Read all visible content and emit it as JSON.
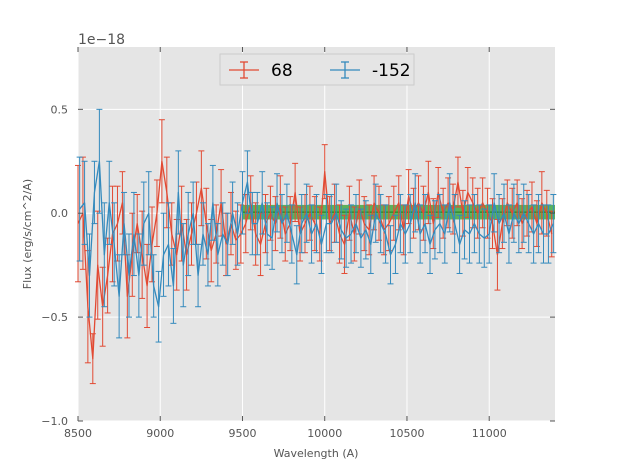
{
  "chart_data": {
    "type": "line",
    "title": "",
    "xlabel": "Wavelength (A)",
    "ylabel": "Flux (erg/s/cm^2/A)",
    "y_offset_label": "1e−18",
    "xlim": [
      8500,
      11400
    ],
    "ylim": [
      -1.0,
      0.8
    ],
    "x_ticks": [
      8500,
      9000,
      9500,
      10000,
      10500,
      11000
    ],
    "x_tick_labels": [
      "8500",
      "9000",
      "9500",
      "10000",
      "10500",
      "11000"
    ],
    "y_ticks": [
      -1.0,
      -0.5,
      0.0,
      0.5
    ],
    "y_tick_labels": [
      "−1.0",
      "−0.5",
      "0.0",
      "0.5"
    ],
    "grid": true,
    "legend": {
      "placement": "top-center",
      "entries": [
        "68",
        "-152"
      ]
    },
    "band": {
      "x_start": 9500,
      "x_end": 11400,
      "y_low": -0.03,
      "y_high": 0.04,
      "color": "#2ca02c"
    },
    "series": [
      {
        "name": "68",
        "color": "#e24a33",
        "x": [
          8500,
          8530,
          8560,
          8590,
          8620,
          8650,
          8680,
          8710,
          8740,
          8770,
          8800,
          8830,
          8860,
          8890,
          8920,
          8950,
          8980,
          9010,
          9040,
          9070,
          9100,
          9130,
          9160,
          9190,
          9220,
          9250,
          9280,
          9310,
          9340,
          9370,
          9400,
          9430,
          9460,
          9490,
          9520,
          9550,
          9580,
          9610,
          9640,
          9670,
          9700,
          9730,
          9760,
          9790,
          9820,
          9850,
          9880,
          9910,
          9940,
          9970,
          10000,
          10030,
          10060,
          10090,
          10120,
          10150,
          10180,
          10210,
          10240,
          10270,
          10300,
          10330,
          10360,
          10390,
          10420,
          10450,
          10480,
          10510,
          10540,
          10570,
          10600,
          10630,
          10660,
          10690,
          10720,
          10750,
          10780,
          10810,
          10840,
          10870,
          10900,
          10930,
          10960,
          10990,
          11020,
          11050,
          11080,
          11110,
          11140,
          11170,
          11200,
          11230,
          11260,
          11290,
          11320,
          11350,
          11380
        ],
        "y": [
          -0.05,
          0.0,
          -0.45,
          -0.7,
          -0.25,
          -0.45,
          -0.3,
          -0.1,
          -0.05,
          0.05,
          -0.4,
          -0.2,
          -0.05,
          -0.2,
          -0.35,
          -0.15,
          0.0,
          0.25,
          0.1,
          -0.1,
          -0.2,
          -0.05,
          -0.2,
          -0.1,
          0.0,
          0.12,
          -0.05,
          -0.18,
          -0.1,
          0.05,
          -0.15,
          -0.05,
          -0.13,
          -0.1,
          -0.05,
          0.05,
          -0.1,
          -0.15,
          -0.05,
          0.0,
          -0.05,
          0.03,
          -0.1,
          -0.05,
          0.1,
          -0.1,
          -0.05,
          0.0,
          -0.05,
          -0.1,
          0.2,
          -0.05,
          0.0,
          -0.1,
          -0.15,
          0.0,
          -0.1,
          0.03,
          -0.05,
          -0.08,
          0.05,
          0.0,
          -0.08,
          -0.05,
          0.0,
          0.05,
          -0.08,
          0.08,
          0.0,
          0.05,
          0.0,
          0.1,
          -0.05,
          0.1,
          0.0,
          0.05,
          0.02,
          0.15,
          0.0,
          0.1,
          0.05,
          0.0,
          0.05,
          0.0,
          -0.05,
          -0.2,
          -0.05,
          0.05,
          0.0,
          0.05,
          -0.05,
          0.0,
          0.03,
          -0.05,
          0.05,
          0.0,
          -0.1
        ],
        "yerr": [
          0.28,
          0.27,
          0.27,
          0.12,
          0.26,
          0.19,
          0.18,
          0.23,
          0.18,
          0.15,
          0.2,
          0.2,
          0.14,
          0.21,
          0.2,
          0.18,
          0.16,
          0.2,
          0.17,
          0.15,
          0.17,
          0.18,
          0.17,
          0.15,
          0.15,
          0.18,
          0.17,
          0.15,
          0.14,
          0.16,
          0.15,
          0.15,
          0.14,
          0.14,
          0.14,
          0.13,
          0.15,
          0.15,
          0.14,
          0.13,
          0.13,
          0.15,
          0.13,
          0.13,
          0.14,
          0.13,
          0.14,
          0.13,
          0.13,
          0.13,
          0.13,
          0.13,
          0.14,
          0.14,
          0.14,
          0.13,
          0.13,
          0.13,
          0.13,
          0.12,
          0.13,
          0.13,
          0.12,
          0.13,
          0.13,
          0.13,
          0.12,
          0.13,
          0.12,
          0.13,
          0.13,
          0.15,
          0.12,
          0.12,
          0.12,
          0.12,
          0.12,
          0.12,
          0.11,
          0.12,
          0.12,
          0.12,
          0.12,
          0.12,
          0.12,
          0.17,
          0.12,
          0.11,
          0.12,
          0.11,
          0.12,
          0.11,
          0.12,
          0.11,
          0.15,
          0.11,
          0.11
        ]
      },
      {
        "name": "-152",
        "color": "#348abd",
        "x": [
          8510,
          8540,
          8570,
          8600,
          8630,
          8660,
          8690,
          8720,
          8750,
          8780,
          8810,
          8840,
          8870,
          8900,
          8930,
          8960,
          8990,
          9020,
          9050,
          9080,
          9110,
          9140,
          9170,
          9200,
          9230,
          9260,
          9290,
          9320,
          9350,
          9380,
          9410,
          9440,
          9470,
          9500,
          9530,
          9560,
          9590,
          9620,
          9650,
          9680,
          9710,
          9740,
          9770,
          9800,
          9830,
          9860,
          9890,
          9920,
          9950,
          9980,
          10010,
          10040,
          10070,
          10100,
          10130,
          10160,
          10190,
          10220,
          10250,
          10280,
          10310,
          10340,
          10370,
          10400,
          10430,
          10460,
          10490,
          10520,
          10550,
          10580,
          10610,
          10640,
          10670,
          10700,
          10730,
          10760,
          10790,
          10820,
          10850,
          10880,
          10910,
          10940,
          10970,
          11000,
          11030,
          11060,
          11090,
          11120,
          11150,
          11180,
          11210,
          11240,
          11270,
          11300,
          11330,
          11360,
          11390
        ],
        "y": [
          0.02,
          0.05,
          -0.3,
          0.1,
          0.25,
          -0.2,
          0.05,
          -0.15,
          -0.4,
          -0.05,
          -0.3,
          -0.1,
          -0.3,
          -0.05,
          0.0,
          -0.35,
          -0.45,
          -0.2,
          -0.15,
          -0.35,
          0.1,
          -0.25,
          -0.1,
          0.0,
          -0.3,
          -0.1,
          -0.2,
          0.05,
          -0.2,
          -0.1,
          -0.15,
          0.0,
          -0.1,
          0.05,
          0.15,
          -0.05,
          -0.05,
          0.05,
          -0.1,
          -0.12,
          0.05,
          -0.05,
          0.0,
          -0.1,
          -0.2,
          -0.05,
          0.0,
          -0.1,
          -0.05,
          -0.15,
          -0.05,
          -0.05,
          0.0,
          -0.08,
          -0.12,
          -0.1,
          -0.05,
          -0.12,
          -0.08,
          -0.15,
          0.0,
          -0.05,
          -0.1,
          -0.2,
          -0.15,
          -0.05,
          -0.1,
          -0.05,
          0.05,
          -0.1,
          -0.05,
          -0.15,
          -0.08,
          -0.05,
          -0.1,
          0.05,
          -0.05,
          -0.15,
          -0.08,
          -0.1,
          -0.05,
          -0.1,
          -0.12,
          -0.1,
          0.05,
          -0.05,
          0.0,
          -0.1,
          0.0,
          -0.05,
          0.0,
          -0.05,
          -0.1,
          -0.05,
          -0.1,
          -0.1,
          -0.05
        ],
        "yerr": [
          0.25,
          0.2,
          0.2,
          0.15,
          0.25,
          0.25,
          0.2,
          0.2,
          0.2,
          0.15,
          0.2,
          0.2,
          0.2,
          0.2,
          0.2,
          0.15,
          0.17,
          0.2,
          0.2,
          0.18,
          0.2,
          0.2,
          0.2,
          0.15,
          0.15,
          0.15,
          0.15,
          0.18,
          0.15,
          0.15,
          0.15,
          0.15,
          0.15,
          0.15,
          0.15,
          0.15,
          0.15,
          0.15,
          0.15,
          0.15,
          0.14,
          0.14,
          0.14,
          0.14,
          0.14,
          0.14,
          0.14,
          0.14,
          0.14,
          0.14,
          0.14,
          0.14,
          0.14,
          0.14,
          0.14,
          0.14,
          0.14,
          0.14,
          0.14,
          0.14,
          0.14,
          0.14,
          0.14,
          0.14,
          0.14,
          0.14,
          0.14,
          0.14,
          0.14,
          0.14,
          0.14,
          0.14,
          0.14,
          0.14,
          0.14,
          0.14,
          0.14,
          0.14,
          0.14,
          0.14,
          0.14,
          0.14,
          0.14,
          0.14,
          0.14,
          0.14,
          0.14,
          0.14,
          0.14,
          0.14,
          0.14,
          0.14,
          0.14,
          0.14,
          0.14,
          0.14,
          0.14
        ]
      }
    ]
  }
}
